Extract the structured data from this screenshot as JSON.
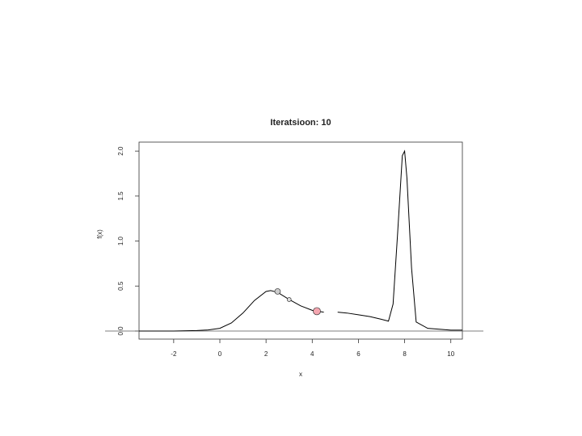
{
  "chart_data": {
    "type": "line",
    "title": "Iteratsioon: 10",
    "x_label": "x",
    "y_label": "f(x)",
    "xlim": [
      -3.5,
      10.5
    ],
    "ylim": [
      -0.09,
      2.1
    ],
    "xticks": [
      -2,
      0,
      2,
      4,
      6,
      8,
      10
    ],
    "yticks": [
      {
        "value": 0,
        "label": "0.0"
      },
      0.5,
      {
        "value": 1,
        "label": "1.0"
      },
      1.5,
      {
        "value": 2,
        "label": "2.0"
      }
    ],
    "hline": 0,
    "curve": {
      "color": "#000000",
      "x": [
        -3.5,
        -3,
        -2,
        -1,
        -0.5,
        0,
        0.5,
        1,
        1.5,
        2,
        2.2,
        2.5,
        3,
        3.5,
        4,
        4.5,
        4.8,
        5.1,
        5.5,
        6,
        6.5,
        7,
        7.3,
        7.5,
        7.7,
        7.9,
        8.0,
        8.1,
        8.3,
        8.5,
        9,
        10,
        10.5
      ],
      "y": [
        0,
        0,
        0,
        0.005,
        0.012,
        0.03,
        0.09,
        0.2,
        0.34,
        0.44,
        0.45,
        0.43,
        0.35,
        0.28,
        0.23,
        0.21,
        null,
        0.21,
        0.2,
        0.18,
        0.16,
        0.13,
        0.11,
        0.3,
        1.1,
        1.95,
        2.0,
        1.7,
        0.7,
        0.1,
        0.03,
        0.01,
        0.01
      ]
    },
    "points": [
      {
        "x": 2.5,
        "y": 0.44,
        "color": "#cccccc",
        "size": 3.5
      },
      {
        "x": 3.0,
        "y": 0.35,
        "color": "#dddddd",
        "size": 2.5
      },
      {
        "x": 4.2,
        "y": 0.22,
        "color": "#f4a6b0",
        "size": 4.5
      }
    ]
  }
}
